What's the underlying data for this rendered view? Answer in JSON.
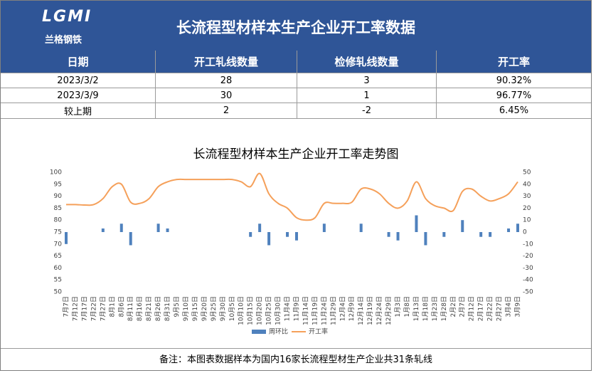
{
  "header": {
    "logo": "LGMI",
    "logo_subtitle": "兰格钢铁",
    "title": "长流程型材样本生产企业开工率数据"
  },
  "table": {
    "columns": [
      "日期",
      "开工轧线数量",
      "检修轧线数量",
      "开工率"
    ],
    "rows": [
      [
        "2023/3/2",
        "28",
        "3",
        "90.32%"
      ],
      [
        "2023/3/9",
        "30",
        "1",
        "96.77%"
      ],
      [
        "较上期",
        "2",
        "-2",
        "6.45%"
      ]
    ]
  },
  "chart_data": {
    "type": "combo",
    "title": "长流程型材样本生产企业开工率走势图",
    "categories": [
      "7月7日",
      "7月12日",
      "7月17日",
      "7月22日",
      "7月27日",
      "8月1日",
      "8月6日",
      "8月11日",
      "8月16日",
      "8月21日",
      "8月26日",
      "8月31日",
      "9月5日",
      "9月10日",
      "9月15日",
      "9月20日",
      "9月25日",
      "9月30日",
      "10月5日",
      "10月10日",
      "10月15日",
      "10月20日",
      "10月25日",
      "10月30日",
      "11月4日",
      "11月9日",
      "11月14日",
      "11月19日",
      "11月24日",
      "11月29日",
      "12月4日",
      "12月9日",
      "12月14日",
      "12月19日",
      "12月24日",
      "12月29日",
      "1月3日",
      "1月8日",
      "1月13日",
      "1月18日",
      "1月23日",
      "1月28日",
      "2月2日",
      "2月7日",
      "2月12日",
      "2月17日",
      "2月22日",
      "2月27日",
      "3月4日",
      "3月9日"
    ],
    "series": [
      {
        "name": "周环比",
        "type": "bar",
        "axis": "y2",
        "color": "#4f81bd",
        "values": [
          -10,
          null,
          null,
          null,
          3,
          null,
          7,
          -11,
          null,
          null,
          7,
          3,
          null,
          null,
          null,
          null,
          null,
          null,
          null,
          null,
          -4,
          7,
          -11,
          null,
          -4,
          -7,
          null,
          null,
          7,
          null,
          null,
          null,
          7,
          null,
          null,
          -4,
          -7,
          null,
          14,
          -11,
          null,
          -4,
          null,
          10,
          null,
          -4,
          -4,
          null,
          3,
          7
        ]
      },
      {
        "name": "开工率",
        "type": "line",
        "color": "#f5a05a",
        "values": [
          86.5,
          86.5,
          86.3,
          86.5,
          89,
          94,
          95,
          87.5,
          87,
          89,
          94,
          96,
          97,
          97,
          97,
          97,
          97,
          97,
          97,
          96,
          94,
          99.5,
          91,
          87,
          85,
          81,
          80,
          81,
          87,
          87,
          87,
          87.5,
          93,
          93,
          91,
          87,
          85,
          88,
          96,
          89,
          86,
          85,
          84,
          92,
          93,
          90,
          88,
          89,
          91,
          96
        ]
      }
    ],
    "ylim": [
      50,
      100
    ],
    "yticks": [
      50,
      55,
      60,
      65,
      70,
      75,
      80,
      85,
      90,
      95,
      100
    ],
    "y2lim": [
      -50,
      50
    ],
    "y2ticks": [
      -50,
      -40,
      -30,
      -20,
      -10,
      0,
      10,
      20,
      30,
      40,
      50
    ],
    "legend": "bottom",
    "grid": false
  },
  "footnote": "备注：本图表数据样本为国内16家长流程型材生产企业共31条轧线"
}
